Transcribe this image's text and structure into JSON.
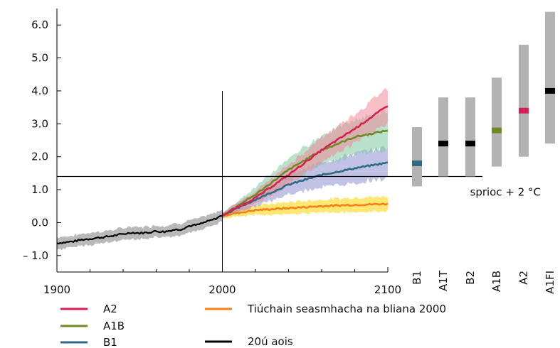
{
  "chart_data": {
    "type": "line",
    "title": "",
    "xlabel": "",
    "ylabel": "",
    "xlim": [
      1900,
      2100
    ],
    "ylim": [
      -1.5,
      6.5
    ],
    "x_ticks": [
      {
        "value": 1900,
        "label": "1900"
      },
      {
        "value": 2000,
        "label": "2000"
      },
      {
        "value": 2100,
        "label": "2100"
      }
    ],
    "y_ticks": [
      {
        "value": 6.0,
        "label": "6.0"
      },
      {
        "value": 5.0,
        "label": "5.0"
      },
      {
        "value": 4.0,
        "label": "4.0"
      },
      {
        "value": 3.0,
        "label": "3.0"
      },
      {
        "value": 2.0,
        "label": "2.0"
      },
      {
        "value": 1.0,
        "label": "1.0"
      },
      {
        "value": 0.0,
        "label": "0.0"
      },
      {
        "value": -1.0,
        "label": "– 1.0"
      }
    ],
    "threshold": {
      "value": 1.4,
      "label": "sprioc + 2 °C"
    },
    "historical": {
      "name": "20ú aois",
      "color": "#000000",
      "band_color": "#808080",
      "points": [
        [
          1900,
          -0.62
        ],
        [
          1905,
          -0.6
        ],
        [
          1910,
          -0.57
        ],
        [
          1915,
          -0.52
        ],
        [
          1920,
          -0.49
        ],
        [
          1925,
          -0.46
        ],
        [
          1930,
          -0.43
        ],
        [
          1935,
          -0.39
        ],
        [
          1940,
          -0.35
        ],
        [
          1945,
          -0.3
        ],
        [
          1950,
          -0.32
        ],
        [
          1955,
          -0.3
        ],
        [
          1960,
          -0.26
        ],
        [
          1965,
          -0.28
        ],
        [
          1970,
          -0.22
        ],
        [
          1975,
          -0.2
        ],
        [
          1980,
          -0.1
        ],
        [
          1985,
          -0.07
        ],
        [
          1990,
          0.02
        ],
        [
          1995,
          0.1
        ],
        [
          2000,
          0.22
        ]
      ],
      "spread": 0.18
    },
    "series": [
      {
        "name": "A2",
        "color": "#d81f52",
        "band_color": "#f08a99",
        "points": [
          [
            2000,
            0.22
          ],
          [
            2020,
            0.75
          ],
          [
            2040,
            1.45
          ],
          [
            2060,
            2.2
          ],
          [
            2080,
            2.85
          ],
          [
            2100,
            3.55
          ]
        ],
        "spread": [
          0.08,
          0.2,
          0.3,
          0.38,
          0.45,
          0.55
        ]
      },
      {
        "name": "A1B",
        "color": "#6d8a25",
        "band_color": "#7fc9a3",
        "points": [
          [
            2000,
            0.22
          ],
          [
            2020,
            0.85
          ],
          [
            2040,
            1.6
          ],
          [
            2060,
            2.2
          ],
          [
            2080,
            2.6
          ],
          [
            2100,
            2.8
          ]
        ],
        "spread": [
          0.08,
          0.22,
          0.35,
          0.45,
          0.52,
          0.58
        ]
      },
      {
        "name": "B1",
        "color": "#2e6b82",
        "band_color": "#8e8fd1",
        "points": [
          [
            2000,
            0.22
          ],
          [
            2020,
            0.7
          ],
          [
            2040,
            1.15
          ],
          [
            2060,
            1.45
          ],
          [
            2080,
            1.65
          ],
          [
            2100,
            1.82
          ]
        ],
        "spread": [
          0.08,
          0.2,
          0.3,
          0.38,
          0.45,
          0.48
        ]
      },
      {
        "name": "Tiúchain seasmhacha na bliana 2000",
        "color": "#f57f17",
        "band_color": "#ffd400",
        "points": [
          [
            2000,
            0.22
          ],
          [
            2020,
            0.38
          ],
          [
            2040,
            0.44
          ],
          [
            2060,
            0.5
          ],
          [
            2080,
            0.54
          ],
          [
            2100,
            0.57
          ]
        ],
        "spread": [
          0.08,
          0.15,
          0.18,
          0.2,
          0.22,
          0.22
        ]
      }
    ],
    "range_bars": [
      {
        "label": "B1",
        "min": 1.1,
        "max": 2.9,
        "best": 1.8,
        "mark_color": "#2e6b82"
      },
      {
        "label": "A1T",
        "min": 1.4,
        "max": 3.8,
        "best": 2.4,
        "mark_color": "#000000"
      },
      {
        "label": "B2",
        "min": 1.4,
        "max": 3.8,
        "best": 2.4,
        "mark_color": "#000000"
      },
      {
        "label": "A1B",
        "min": 1.7,
        "max": 4.4,
        "best": 2.8,
        "mark_color": "#6d8a25"
      },
      {
        "label": "A2",
        "min": 2.0,
        "max": 5.4,
        "best": 3.4,
        "mark_color": "#d81f52"
      },
      {
        "label": "A1FI",
        "min": 2.4,
        "max": 6.4,
        "best": 4.0,
        "mark_color": "#000000"
      }
    ],
    "range_bar_color": "#b3b3b3",
    "legend": [
      {
        "name": "A2",
        "color": "#d81f52"
      },
      {
        "name": "A1B",
        "color": "#6d8a25"
      },
      {
        "name": "B1",
        "color": "#2e6b82"
      },
      {
        "name": "Tiúchain seasmhacha na bliana 2000",
        "color": "#f57f17"
      },
      {
        "name": "20ú aois",
        "color": "#000000"
      }
    ]
  }
}
